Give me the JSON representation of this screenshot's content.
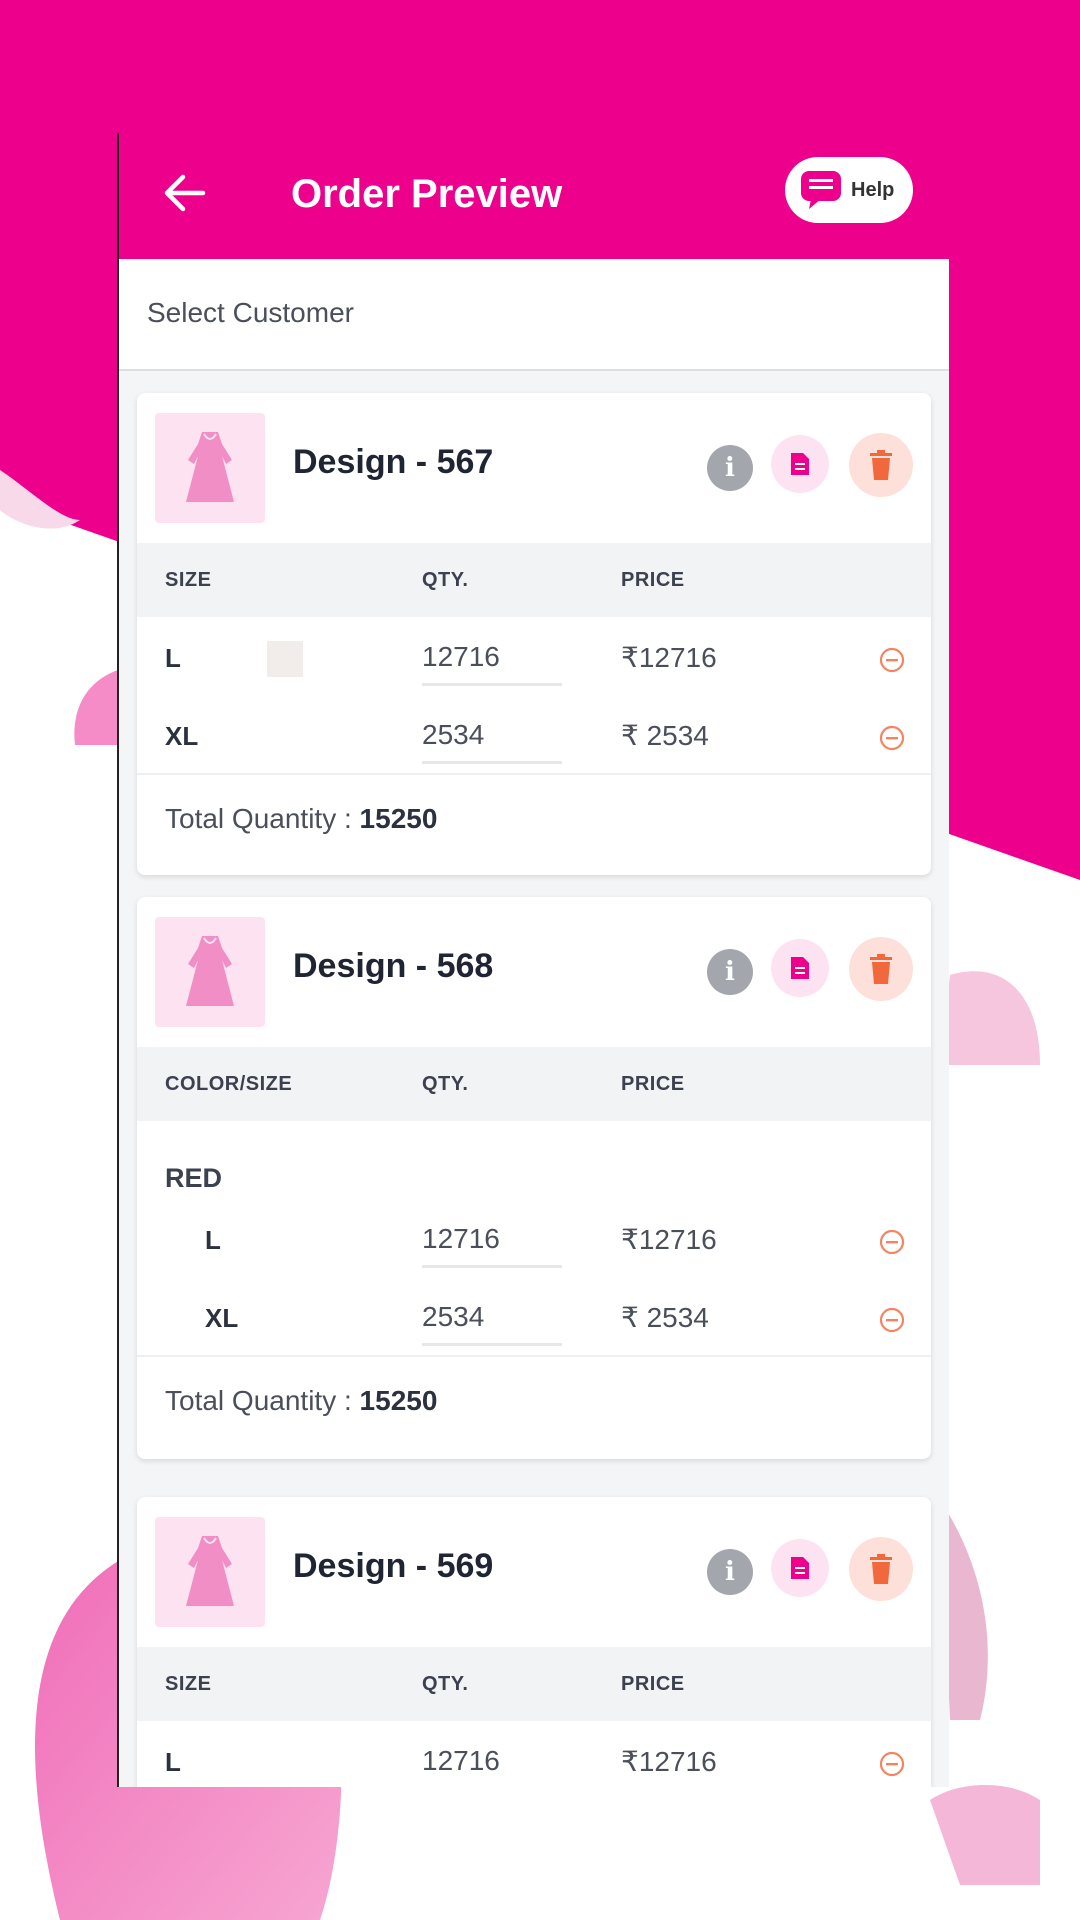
{
  "colors": {
    "brand": "#ec008c",
    "thumb_bg": "#fde3f1",
    "info_gray": "#a3a7ad",
    "delete_orange": "#f0683c",
    "remove_orange": "#f4845f"
  },
  "header": {
    "back_icon": "arrow-left-icon",
    "title": "Order Preview",
    "help_icon": "chat-bubble-icon",
    "help_label": "Help"
  },
  "customer": {
    "placeholder": "Select Customer"
  },
  "designs": [
    {
      "name": "Design - 567",
      "columns": [
        "SIZE",
        "QTY.",
        "PRICE"
      ],
      "rows": [
        {
          "size": "L",
          "qty": "12716",
          "price": "₹12716"
        },
        {
          "size": "XL",
          "qty": "2534",
          "price": "₹ 2534"
        }
      ],
      "total_label": "Total Quantity : ",
      "total_value": "15250"
    },
    {
      "name": "Design - 568",
      "columns": [
        "COLOR/SIZE",
        "QTY.",
        "PRICE"
      ],
      "group": "RED",
      "rows": [
        {
          "size": "L",
          "qty": "12716",
          "price": "₹12716"
        },
        {
          "size": "XL",
          "qty": "2534",
          "price": "₹ 2534"
        }
      ],
      "total_label": "Total Quantity : ",
      "total_value": "15250"
    },
    {
      "name": "Design - 569",
      "columns": [
        "SIZE",
        "QTY.",
        "PRICE"
      ],
      "rows": [
        {
          "size": "L",
          "qty": "12716",
          "price": "₹12716"
        }
      ]
    }
  ],
  "icons": {
    "thumbnail": "dress-icon",
    "info": "info-icon",
    "doc": "document-icon",
    "delete": "trash-icon",
    "remove": "minus-circle-icon"
  },
  "info_glyph": "i"
}
